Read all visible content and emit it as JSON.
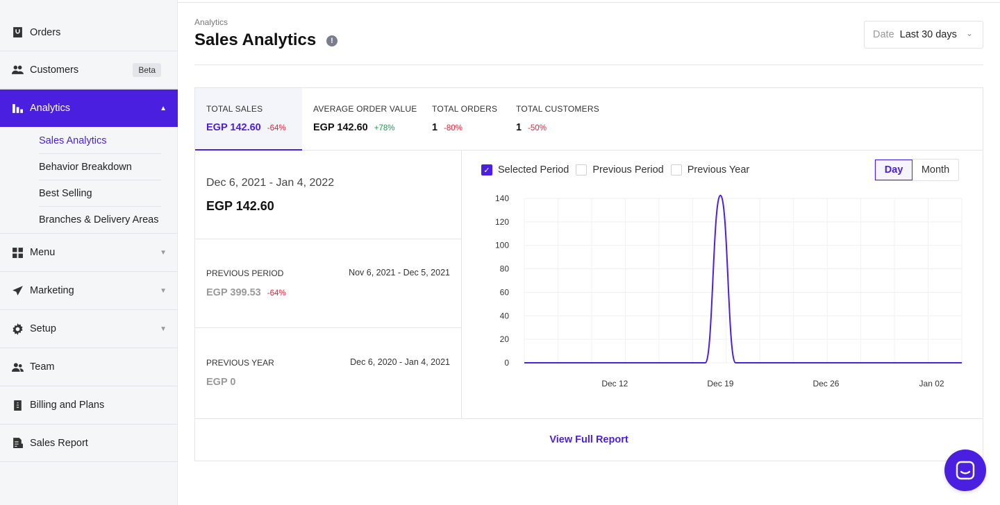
{
  "sidebar": {
    "items": [
      {
        "label": "Orders"
      },
      {
        "label": "Customers",
        "badge": "Beta"
      },
      {
        "label": "Analytics"
      },
      {
        "label": "Menu"
      },
      {
        "label": "Marketing"
      },
      {
        "label": "Setup"
      },
      {
        "label": "Team"
      },
      {
        "label": "Billing and Plans"
      },
      {
        "label": "Sales Report"
      }
    ],
    "analytics_sub": [
      {
        "label": "Sales Analytics"
      },
      {
        "label": "Behavior Breakdown"
      },
      {
        "label": "Best Selling"
      },
      {
        "label": "Branches & Delivery Areas"
      }
    ]
  },
  "header": {
    "breadcrumb": "Analytics",
    "title": "Sales Analytics",
    "info_glyph": "!",
    "date_label": "Date",
    "date_value": "Last 30 days"
  },
  "stats": [
    {
      "label": "TOTAL SALES",
      "value": "EGP 142.60",
      "change": "-64%"
    },
    {
      "label": "AVERAGE ORDER VALUE",
      "value": "EGP 142.60",
      "change": "+78%"
    },
    {
      "label": "TOTAL ORDERS",
      "value": "1",
      "change": "-80%"
    },
    {
      "label": "TOTAL CUSTOMERS",
      "value": "1",
      "change": "-50%"
    }
  ],
  "periods": {
    "current": {
      "range": "Dec 6, 2021 - Jan 4, 2022",
      "value": "EGP 142.60"
    },
    "previous_period": {
      "label": "PREVIOUS PERIOD",
      "range": "Nov 6, 2021 - Dec 5, 2021",
      "value": "EGP 399.53",
      "change": "-64%"
    },
    "previous_year": {
      "label": "PREVIOUS YEAR",
      "range": "Dec 6, 2020 - Jan 4, 2021",
      "value": "EGP 0"
    }
  },
  "legend": {
    "selected": "Selected Period",
    "previous_period": "Previous Period",
    "previous_year": "Previous Year"
  },
  "granularity": {
    "day": "Day",
    "month": "Month"
  },
  "footer": {
    "view_full_report": "View Full Report"
  },
  "colors": {
    "accent": "#4b1fe0",
    "negative": "#e0223c",
    "positive": "#1a9b4f"
  },
  "chart_data": {
    "type": "line",
    "x": [
      "Dec 6",
      "Dec 7",
      "Dec 8",
      "Dec 9",
      "Dec 10",
      "Dec 11",
      "Dec 12",
      "Dec 13",
      "Dec 14",
      "Dec 15",
      "Dec 16",
      "Dec 17",
      "Dec 18",
      "Dec 19",
      "Dec 20",
      "Dec 21",
      "Dec 22",
      "Dec 23",
      "Dec 24",
      "Dec 25",
      "Dec 26",
      "Dec 27",
      "Dec 28",
      "Dec 29",
      "Dec 30",
      "Dec 31",
      "Jan 01",
      "Jan 02",
      "Jan 03",
      "Jan 04"
    ],
    "series": [
      {
        "values": [
          0,
          0,
          0,
          0,
          0,
          0,
          0,
          0,
          0,
          0,
          0,
          0,
          0,
          142.6,
          0,
          0,
          0,
          0,
          0,
          0,
          0,
          0,
          0,
          0,
          0,
          0,
          0,
          0,
          0,
          0
        ]
      }
    ],
    "tick_labels_x": [
      "Dec 12",
      "Dec 19",
      "Dec 26",
      "Jan 02"
    ],
    "yticks": [
      0,
      20,
      40,
      60,
      80,
      100,
      120,
      140
    ],
    "ylim": [
      0,
      140
    ],
    "grid": true
  }
}
